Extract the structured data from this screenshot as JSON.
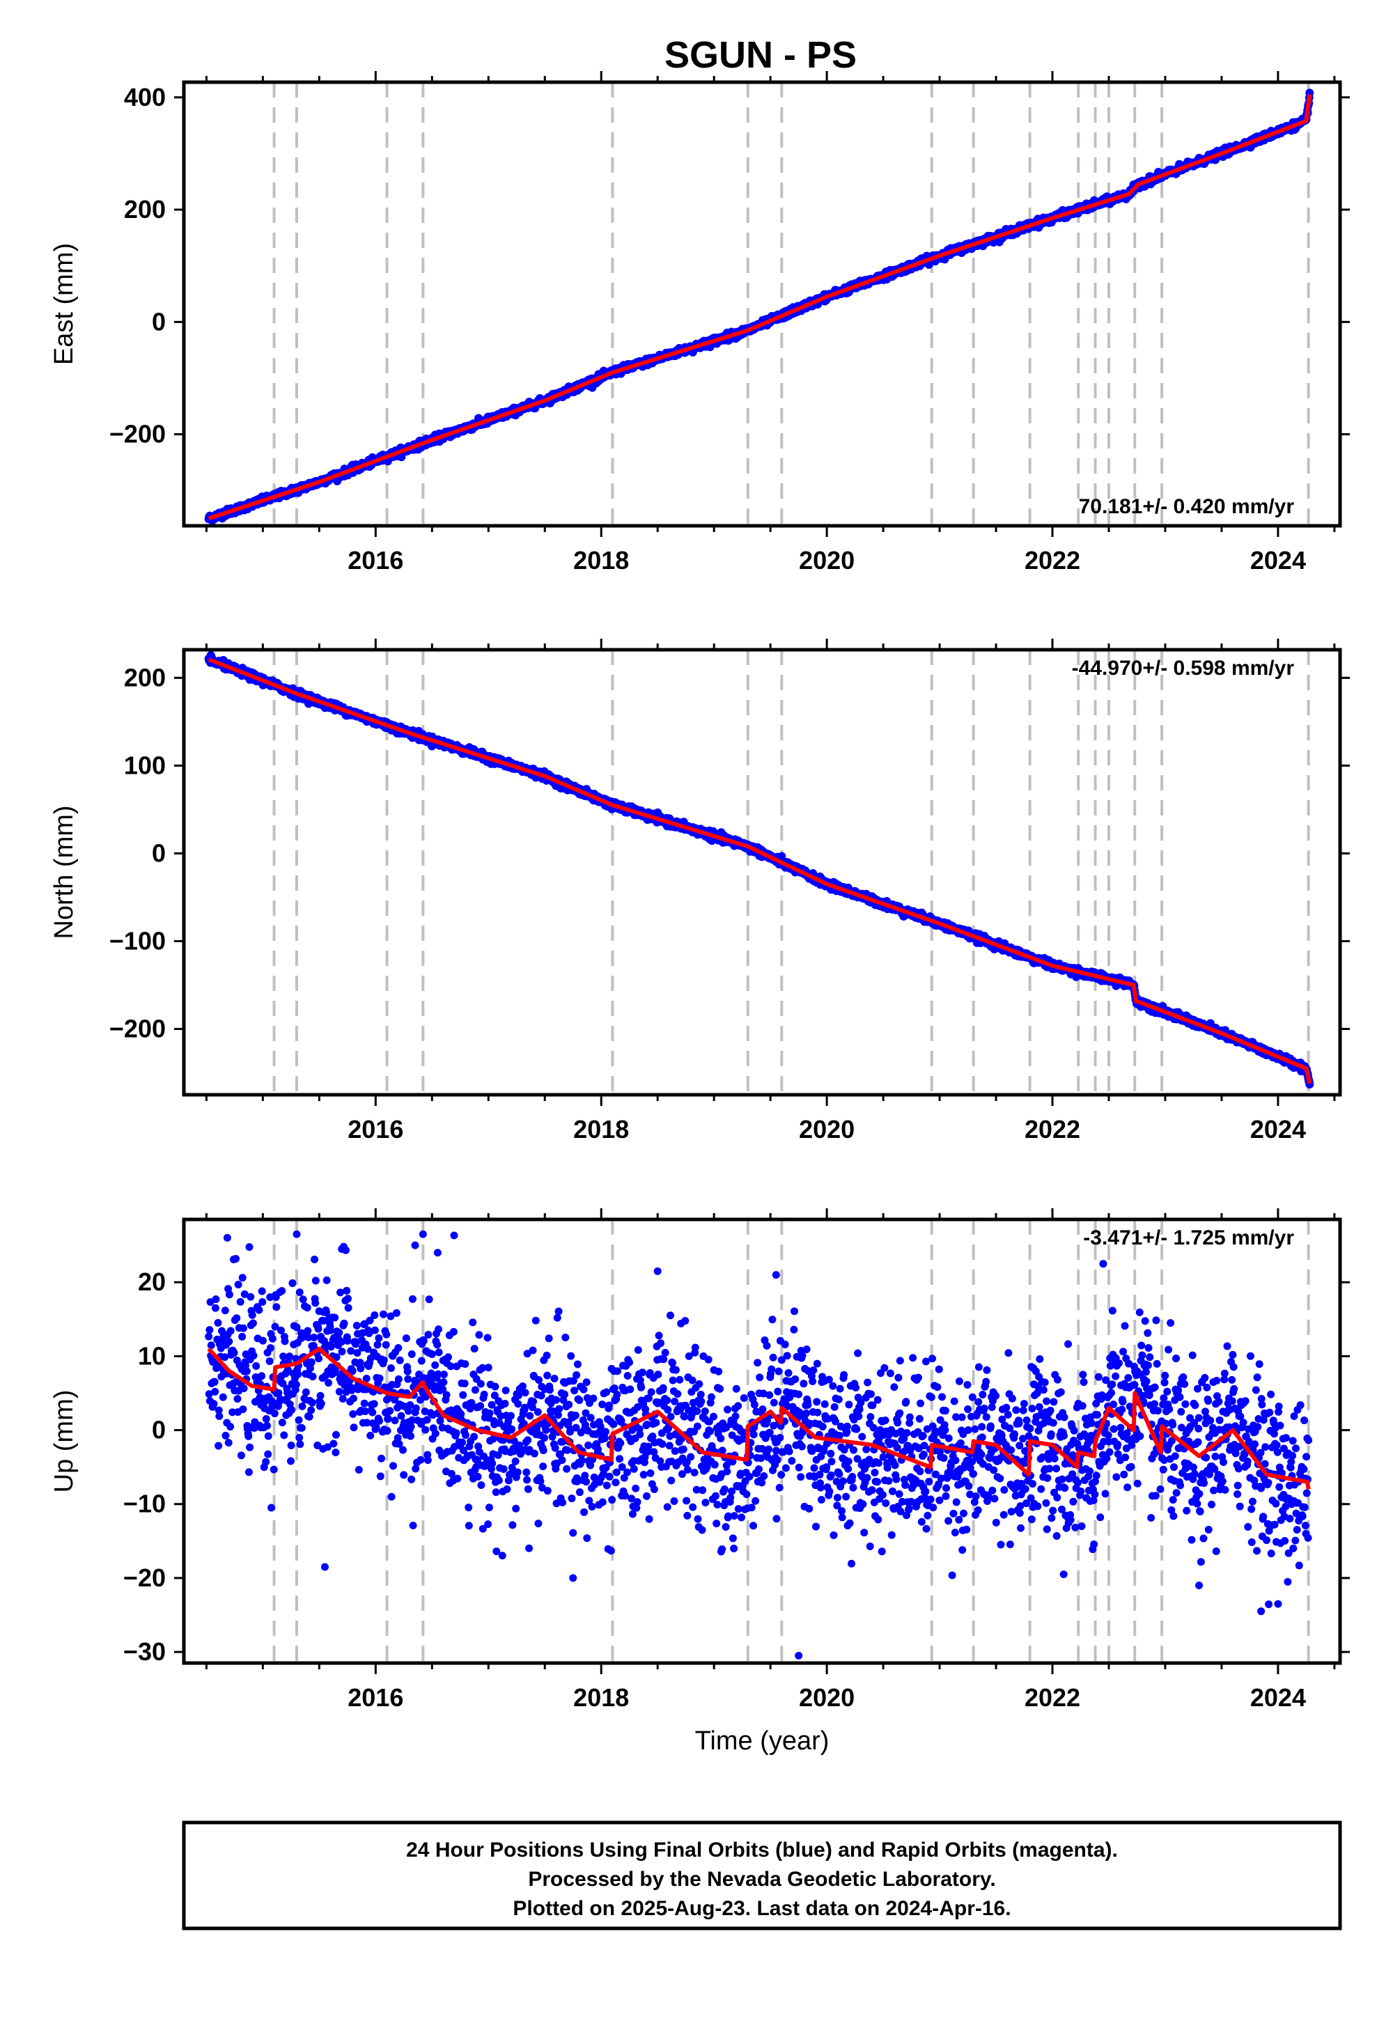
{
  "chart_data": {
    "title": "SGUN - PS",
    "xlabel": "Time (year)",
    "xlim": [
      2014.3,
      2024.55
    ],
    "x_ticks": [
      2016,
      2018,
      2020,
      2022,
      2024
    ],
    "x_tick_labels": [
      "2016",
      "2018",
      "2020",
      "2022",
      "2024"
    ],
    "equipment_change_lines": [
      2015.1,
      2015.3,
      2016.1,
      2016.42,
      2018.1,
      2019.3,
      2019.6,
      2020.93,
      2021.3,
      2021.8,
      2022.23,
      2022.38,
      2022.5,
      2022.73,
      2022.97,
      2024.27
    ],
    "colors": {
      "data": "#0000ff",
      "model": "#ff0000",
      "breaks": "#c0c0c0",
      "frame": "#000000"
    },
    "grid": false,
    "panels": [
      {
        "id": "east",
        "type": "scatter",
        "ylabel": "East (mm)",
        "ylim": [
          -363,
          427
        ],
        "yticks": [
          -200,
          0,
          200,
          400
        ],
        "ytick_labels": [
          "−200",
          "0",
          "200",
          "400"
        ],
        "rate_text": "70.181+/- 0.420 mm/yr",
        "rate_position": "bottom-right",
        "model": {
          "x": [
            2014.52,
            2015.5,
            2016.5,
            2017.5,
            2018.1,
            2019.3,
            2020.0,
            2021.0,
            2022.0,
            2022.68,
            2022.76,
            2023.5,
            2024.25,
            2024.28
          ],
          "y": [
            -350,
            -285,
            -210,
            -140,
            -90,
            -15,
            45,
            118,
            185,
            228,
            245,
            300,
            358,
            405
          ]
        },
        "series": [
          {
            "name": "",
            "noise": 3,
            "x": [
              2014.52,
              2015.5,
              2016.5,
              2017.5,
              2018.1,
              2019.3,
              2020.0,
              2021.0,
              2022.0,
              2022.68,
              2022.76,
              2023.5,
              2024.25,
              2024.28
            ],
            "y": [
              -350,
              -285,
              -210,
              -140,
              -90,
              -15,
              45,
              118,
              185,
              228,
              245,
              300,
              358,
              405
            ]
          }
        ]
      },
      {
        "id": "north",
        "type": "scatter",
        "ylabel": "North (mm)",
        "ylim": [
          -275,
          232
        ],
        "yticks": [
          -200,
          -100,
          0,
          100,
          200
        ],
        "ytick_labels": [
          "−200",
          "−100",
          "0",
          "100",
          "200"
        ],
        "rate_text": "-44.970+/- 0.598 mm/yr",
        "rate_position": "top-right",
        "model": {
          "x": [
            2014.52,
            2015.3,
            2016.3,
            2017.5,
            2018.1,
            2019.3,
            2020.0,
            2021.0,
            2022.0,
            2022.72,
            2022.74,
            2023.5,
            2024.25,
            2024.28
          ],
          "y": [
            221,
            182,
            137,
            88,
            55,
            8,
            -35,
            -80,
            -128,
            -150,
            -168,
            -205,
            -245,
            -262
          ]
        },
        "series": [
          {
            "name": "",
            "noise": 2,
            "x": [
              2014.52,
              2015.3,
              2016.3,
              2017.5,
              2018.1,
              2019.3,
              2020.0,
              2021.0,
              2022.0,
              2022.72,
              2022.74,
              2023.5,
              2024.25,
              2024.28
            ],
            "y": [
              221,
              182,
              137,
              88,
              55,
              8,
              -35,
              -80,
              -128,
              -150,
              -168,
              -205,
              -245,
              -262
            ]
          }
        ]
      },
      {
        "id": "up",
        "type": "scatter",
        "ylabel": "Up (mm)",
        "ylim": [
          -31.5,
          28.5
        ],
        "yticks": [
          -30,
          -20,
          -10,
          0,
          10,
          20
        ],
        "ytick_labels": [
          "−30",
          "−20",
          "−10",
          "0",
          "10",
          "20"
        ],
        "rate_text": "-3.471+/- 1.725 mm/yr",
        "rate_position": "top-right",
        "model": {
          "x": [
            2014.52,
            2014.7,
            2014.9,
            2015.1,
            2015.11,
            2015.3,
            2015.5,
            2015.8,
            2016.1,
            2016.3,
            2016.42,
            2016.43,
            2016.6,
            2016.9,
            2017.2,
            2017.5,
            2017.8,
            2018.09,
            2018.1,
            2018.5,
            2018.9,
            2019.29,
            2019.3,
            2019.5,
            2019.59,
            2019.6,
            2019.9,
            2020.4,
            2020.92,
            2020.93,
            2021.29,
            2021.3,
            2021.5,
            2021.79,
            2021.8,
            2022.0,
            2022.22,
            2022.23,
            2022.37,
            2022.38,
            2022.5,
            2022.72,
            2022.73,
            2022.96,
            2022.97,
            2023.3,
            2023.6,
            2023.9,
            2024.26,
            2024.27
          ],
          "y": [
            11,
            8,
            6,
            5.5,
            8.5,
            9,
            11,
            7,
            5,
            4.5,
            6.5,
            6,
            2,
            0,
            -1,
            2,
            -3,
            -4,
            -0.5,
            2.5,
            -3,
            -4,
            0.5,
            2.5,
            1,
            3,
            -1,
            -2,
            -5,
            -2,
            -3,
            -1.5,
            -2,
            -6,
            -1.5,
            -2,
            -5,
            -3,
            -3.5,
            -1.5,
            3,
            0,
            5,
            -3,
            0.5,
            -3.5,
            0,
            -6,
            -7,
            -8
          ]
        },
        "series": [
          {
            "name": "",
            "noise": 5.5,
            "x": [
              2014.52,
              2014.7,
              2014.9,
              2015.1,
              2015.11,
              2015.3,
              2015.5,
              2015.8,
              2016.1,
              2016.3,
              2016.42,
              2016.43,
              2016.6,
              2016.9,
              2017.2,
              2017.5,
              2017.8,
              2018.09,
              2018.1,
              2018.5,
              2018.9,
              2019.29,
              2019.3,
              2019.5,
              2019.59,
              2019.6,
              2019.9,
              2020.4,
              2020.92,
              2020.93,
              2021.29,
              2021.3,
              2021.5,
              2021.79,
              2021.8,
              2022.0,
              2022.22,
              2022.23,
              2022.37,
              2022.38,
              2022.5,
              2022.72,
              2022.73,
              2022.96,
              2022.97,
              2023.3,
              2023.6,
              2023.9,
              2024.26,
              2024.27
            ],
            "y": [
              11,
              8,
              6,
              5.5,
              8.5,
              9,
              11,
              7,
              5,
              4.5,
              6.5,
              6,
              2,
              0,
              -1,
              2,
              -3,
              -4,
              -0.5,
              2.5,
              -3,
              -4,
              0.5,
              2.5,
              1,
              3,
              -1,
              -2,
              -5,
              -2,
              -3,
              -1.5,
              -2,
              -6,
              -1.5,
              -2,
              -5,
              -3,
              -3.5,
              -1.5,
              3,
              0,
              5,
              -3,
              0.5,
              -3.5,
              0,
              -6,
              -7,
              -8
            ]
          },
          {
            "name": "",
            "outliers": true,
            "x": [
              2015.55,
              2015.7,
              2016.42,
              2016.55,
              2017.75,
              2019.75,
              2019.55,
              2022.45,
              2022.1,
              2024.0,
              2023.85,
              2023.3,
              2018.5,
              2016.35,
              2015.3
            ],
            "y": [
              -18.5,
              24.5,
              26.5,
              24,
              -20,
              -30.5,
              21,
              22.5,
              -19.5,
              -23.5,
              -24.5,
              -21,
              21.5,
              25,
              26.5
            ]
          }
        ]
      }
    ]
  },
  "footer": {
    "line1": "24 Hour Positions Using Final Orbits (blue) and Rapid Orbits (magenta).",
    "line2": "Processed by the Nevada Geodetic Laboratory.",
    "line3": "Plotted on 2025-Aug-23. Last data on 2024-Apr-16."
  }
}
